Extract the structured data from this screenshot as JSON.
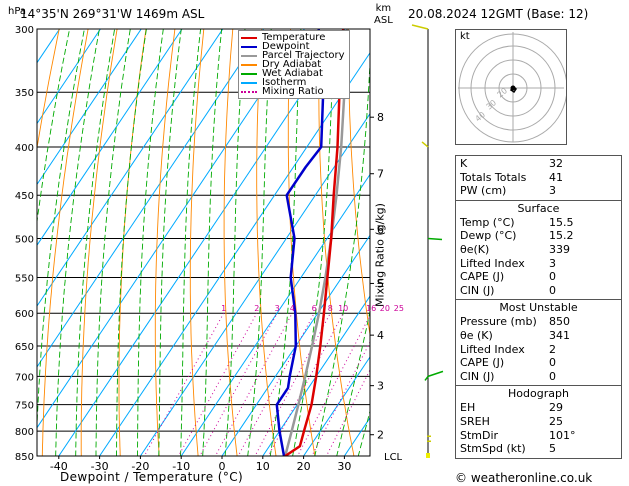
{
  "header": {
    "location": "14°35'N  269°31'W  1469m  ASL",
    "datetime": "20.08.2024  12GMT  (Base: 12)"
  },
  "axis": {
    "hpa_label": "hPa",
    "km_label_1": "km",
    "km_label_2": "ASL",
    "xlabel": "Dewpoint / Temperature (°C)",
    "mixing_ratio_label": "Mixing Ratio (g/kg)",
    "lcl_label": "LCL"
  },
  "legend": [
    {
      "label": "Temperature",
      "color": "#dd0000",
      "style": "solid"
    },
    {
      "label": "Dewpoint",
      "color": "#0000cc",
      "style": "solid"
    },
    {
      "label": "Parcel Trajectory",
      "color": "#999999",
      "style": "solid"
    },
    {
      "label": "Dry Adiabat",
      "color": "#ff8800",
      "style": "solid"
    },
    {
      "label": "Wet Adiabat",
      "color": "#00aa00",
      "style": "solid"
    },
    {
      "label": "Isotherm",
      "color": "#00aaff",
      "style": "solid"
    },
    {
      "label": "Mixing Ratio",
      "color": "#cc0099",
      "style": "dotted"
    }
  ],
  "chart_data": {
    "type": "line",
    "chart_kind": "skew-T log-P diagram",
    "pressure_levels_hpa": [
      300,
      350,
      400,
      450,
      500,
      550,
      600,
      650,
      700,
      750,
      800,
      850
    ],
    "x_ticks_c": [
      -40,
      -30,
      -20,
      -10,
      0,
      10,
      20,
      30
    ],
    "xlim": [
      -45,
      35
    ],
    "ylim_hpa": [
      850,
      300
    ],
    "height_km_ticks": [
      {
        "label": "8",
        "p": 372
      },
      {
        "label": "7",
        "p": 427
      },
      {
        "label": "6",
        "p": 489
      },
      {
        "label": "5",
        "p": 558
      },
      {
        "label": "4",
        "p": 633
      },
      {
        "label": "3",
        "p": 716
      },
      {
        "label": "2",
        "p": 807
      }
    ],
    "mixing_ratio_lines_gkg": [
      1,
      2,
      3,
      4,
      6,
      8,
      10,
      16,
      20,
      25
    ],
    "mixing_ratio_labels": [
      "1",
      "2",
      "3",
      "4",
      "6",
      "8",
      "10",
      "16",
      "20",
      "25"
    ],
    "series": [
      {
        "name": "Temperature",
        "color": "#dd0000",
        "points": [
          [
            850,
            15.5
          ],
          [
            830,
            17.5
          ],
          [
            800,
            16.0
          ],
          [
            750,
            13.5
          ],
          [
            700,
            10.0
          ],
          [
            650,
            6.0
          ],
          [
            600,
            1.5
          ],
          [
            550,
            -3.5
          ],
          [
            500,
            -9.0
          ],
          [
            450,
            -15.5
          ],
          [
            400,
            -22.5
          ],
          [
            350,
            -31.0
          ],
          [
            300,
            -40.5
          ]
        ]
      },
      {
        "name": "Dewpoint",
        "color": "#0000cc",
        "points": [
          [
            850,
            15.2
          ],
          [
            800,
            10.0
          ],
          [
            750,
            5.0
          ],
          [
            720,
            5.0
          ],
          [
            700,
            3.5
          ],
          [
            650,
            0.0
          ],
          [
            600,
            -5.5
          ],
          [
            550,
            -12.5
          ],
          [
            500,
            -18.0
          ],
          [
            450,
            -27.0
          ],
          [
            420,
            -27.0
          ],
          [
            400,
            -26.5
          ],
          [
            350,
            -35.0
          ],
          [
            300,
            -46.5
          ]
        ]
      },
      {
        "name": "Parcel Trajectory",
        "color": "#999999",
        "points": [
          [
            850,
            15.5
          ],
          [
            800,
            13.0
          ],
          [
            750,
            10.3
          ],
          [
            700,
            7.3
          ],
          [
            650,
            4.0
          ],
          [
            600,
            0.3
          ],
          [
            550,
            -4.0
          ],
          [
            500,
            -9.0
          ],
          [
            450,
            -14.8
          ],
          [
            400,
            -21.6
          ],
          [
            350,
            -29.8
          ],
          [
            300,
            -39.5
          ]
        ]
      }
    ]
  },
  "hodograph": {
    "unit_label": "kt",
    "ring_labels": [
      "20",
      "30",
      "40"
    ]
  },
  "stats": {
    "top": [
      {
        "label": "K",
        "value": "32"
      },
      {
        "label": "Totals Totals",
        "value": "41"
      },
      {
        "label": "PW (cm)",
        "value": "3"
      }
    ],
    "surface": {
      "title": "Surface",
      "rows": [
        {
          "label": "Temp (°C)",
          "value": "15.5"
        },
        {
          "label": "Dewp (°C)",
          "value": "15.2"
        },
        {
          "label": "θe(K)",
          "value": "339"
        },
        {
          "label": "Lifted Index",
          "value": "3"
        },
        {
          "label": "CAPE (J)",
          "value": "0"
        },
        {
          "label": "CIN (J)",
          "value": "0"
        }
      ]
    },
    "most_unstable": {
      "title": "Most Unstable",
      "rows": [
        {
          "label": "Pressure (mb)",
          "value": "850"
        },
        {
          "label": "θe (K)",
          "value": "341"
        },
        {
          "label": "Lifted Index",
          "value": "2"
        },
        {
          "label": "CAPE (J)",
          "value": "0"
        },
        {
          "label": "CIN (J)",
          "value": "0"
        }
      ]
    },
    "hodograph_section": {
      "title": "Hodograph",
      "rows": [
        {
          "label": "EH",
          "value": "29"
        },
        {
          "label": "SREH",
          "value": "25"
        },
        {
          "label": "StmDir",
          "value": "101°"
        },
        {
          "label": "StmSpd (kt)",
          "value": "5"
        }
      ]
    }
  },
  "footer": "© weatheronline.co.uk"
}
